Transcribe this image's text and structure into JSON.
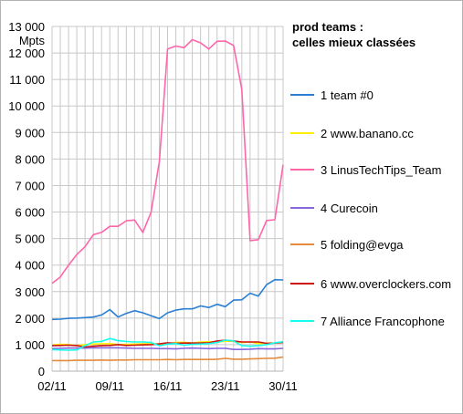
{
  "chart_data": {
    "type": "line",
    "title": "prod teams :",
    "subtitle": "celles mieux classées",
    "ylabel": "Mpts",
    "ylim": [
      0,
      13000
    ],
    "ytick_step": 1000,
    "yticks": [
      "0",
      "1 000",
      "2 000",
      "3 000",
      "4 000",
      "5 000",
      "6 000",
      "7 000",
      "8 000",
      "9 000",
      "10 000",
      "11 000",
      "12 000",
      "13 000"
    ],
    "grid": true,
    "legend_position": "right",
    "x": [
      "02/11",
      "03/11",
      "04/11",
      "05/11",
      "06/11",
      "07/11",
      "08/11",
      "09/11",
      "10/11",
      "11/11",
      "12/11",
      "13/11",
      "14/11",
      "15/11",
      "16/11",
      "17/11",
      "18/11",
      "19/11",
      "20/11",
      "21/11",
      "22/11",
      "23/11",
      "24/11",
      "25/11",
      "26/11",
      "27/11",
      "28/11",
      "29/11",
      "30/11"
    ],
    "xticks": [
      "02/11",
      "09/11",
      "16/11",
      "23/11",
      "30/11"
    ],
    "series": [
      {
        "name": "1 team #0",
        "color": "#2a7fd4",
        "values": [
          1950,
          1960,
          1990,
          2000,
          2020,
          2040,
          2120,
          2320,
          2040,
          2180,
          2280,
          2200,
          2090,
          1980,
          2200,
          2300,
          2350,
          2350,
          2460,
          2400,
          2520,
          2430,
          2680,
          2690,
          2940,
          2830,
          3260,
          3450,
          3440
        ]
      },
      {
        "name": "2 www.banano.cc",
        "color": "#ffee00",
        "values": [
          980,
          1010,
          1000,
          960,
          1000,
          1020,
          1030,
          1040,
          1000,
          1010,
          1020,
          1030,
          1040,
          1020,
          1030,
          1080,
          1090,
          1060,
          1100,
          1110,
          1090,
          1130,
          1120,
          1080,
          1100,
          1040,
          1060,
          1060,
          1080
        ]
      },
      {
        "name": "3 LinusTechTips_Team",
        "color": "#ff66aa",
        "values": [
          3310,
          3550,
          4000,
          4400,
          4690,
          5150,
          5230,
          5460,
          5460,
          5670,
          5700,
          5230,
          5990,
          7900,
          12150,
          12260,
          12200,
          12500,
          12380,
          12150,
          12440,
          12450,
          12280,
          10620,
          4920,
          4960,
          5680,
          5710,
          7780
        ]
      },
      {
        "name": "4 Curecoin",
        "color": "#8866dd",
        "values": [
          850,
          860,
          870,
          870,
          870,
          880,
          880,
          880,
          880,
          870,
          860,
          860,
          860,
          850,
          850,
          840,
          860,
          870,
          860,
          850,
          860,
          860,
          820,
          820,
          830,
          850,
          840,
          840,
          860
        ]
      },
      {
        "name": "5 folding@evga",
        "color": "#e68a3c",
        "values": [
          400,
          400,
          400,
          410,
          410,
          410,
          420,
          410,
          420,
          420,
          430,
          430,
          430,
          430,
          440,
          430,
          440,
          440,
          440,
          440,
          450,
          480,
          450,
          450,
          460,
          470,
          480,
          490,
          530
        ]
      },
      {
        "name": "6 www.overclockers.com",
        "color": "#cc1111",
        "values": [
          960,
          970,
          980,
          960,
          910,
          940,
          960,
          970,
          1000,
          970,
          980,
          990,
          1000,
          1030,
          1070,
          1050,
          1060,
          1060,
          1060,
          1070,
          1140,
          1170,
          1140,
          1100,
          1100,
          1100,
          1050,
          1060,
          1080
        ]
      },
      {
        "name": "7 Alliance Francophone",
        "color": "#11ffee",
        "values": [
          810,
          800,
          790,
          800,
          960,
          1100,
          1120,
          1230,
          1150,
          1120,
          1100,
          1100,
          1080,
          960,
          1020,
          1040,
          980,
          1010,
          1020,
          1040,
          1080,
          1170,
          1140,
          960,
          940,
          960,
          1000,
          1070,
          1110
        ]
      }
    ]
  }
}
